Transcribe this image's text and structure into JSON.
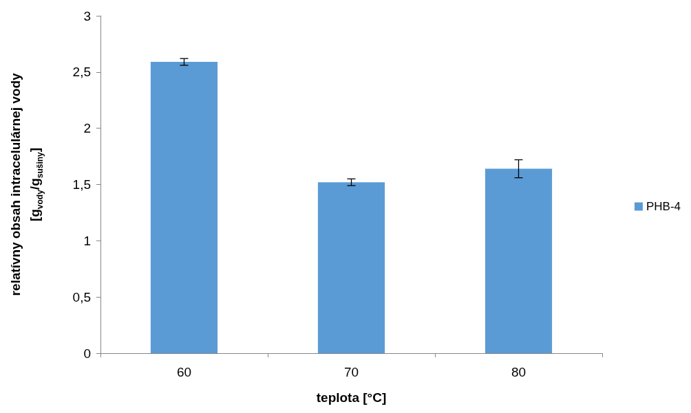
{
  "chart_data": {
    "type": "bar",
    "xlabel": "teplota [°C]",
    "ylabel": "relatívny obsah intracelulárnej vody\n[g$_{vody}$/g$_{sušiny}$]",
    "categories": [
      "60",
      "70",
      "80"
    ],
    "series": [
      {
        "name": "PHB-4",
        "color": "#5b9bd5",
        "values": [
          2.59,
          1.52,
          1.64
        ],
        "errors": [
          0.03,
          0.03,
          0.08
        ]
      }
    ],
    "ylim": [
      0,
      3
    ],
    "yticks": [
      0,
      {
        "value": 0.5,
        "label": "0,5"
      },
      1,
      {
        "value": 1.5,
        "label": "1,5"
      },
      2,
      {
        "value": 2.5,
        "label": "2,5"
      },
      3
    ],
    "grid": false,
    "legend": "right"
  }
}
